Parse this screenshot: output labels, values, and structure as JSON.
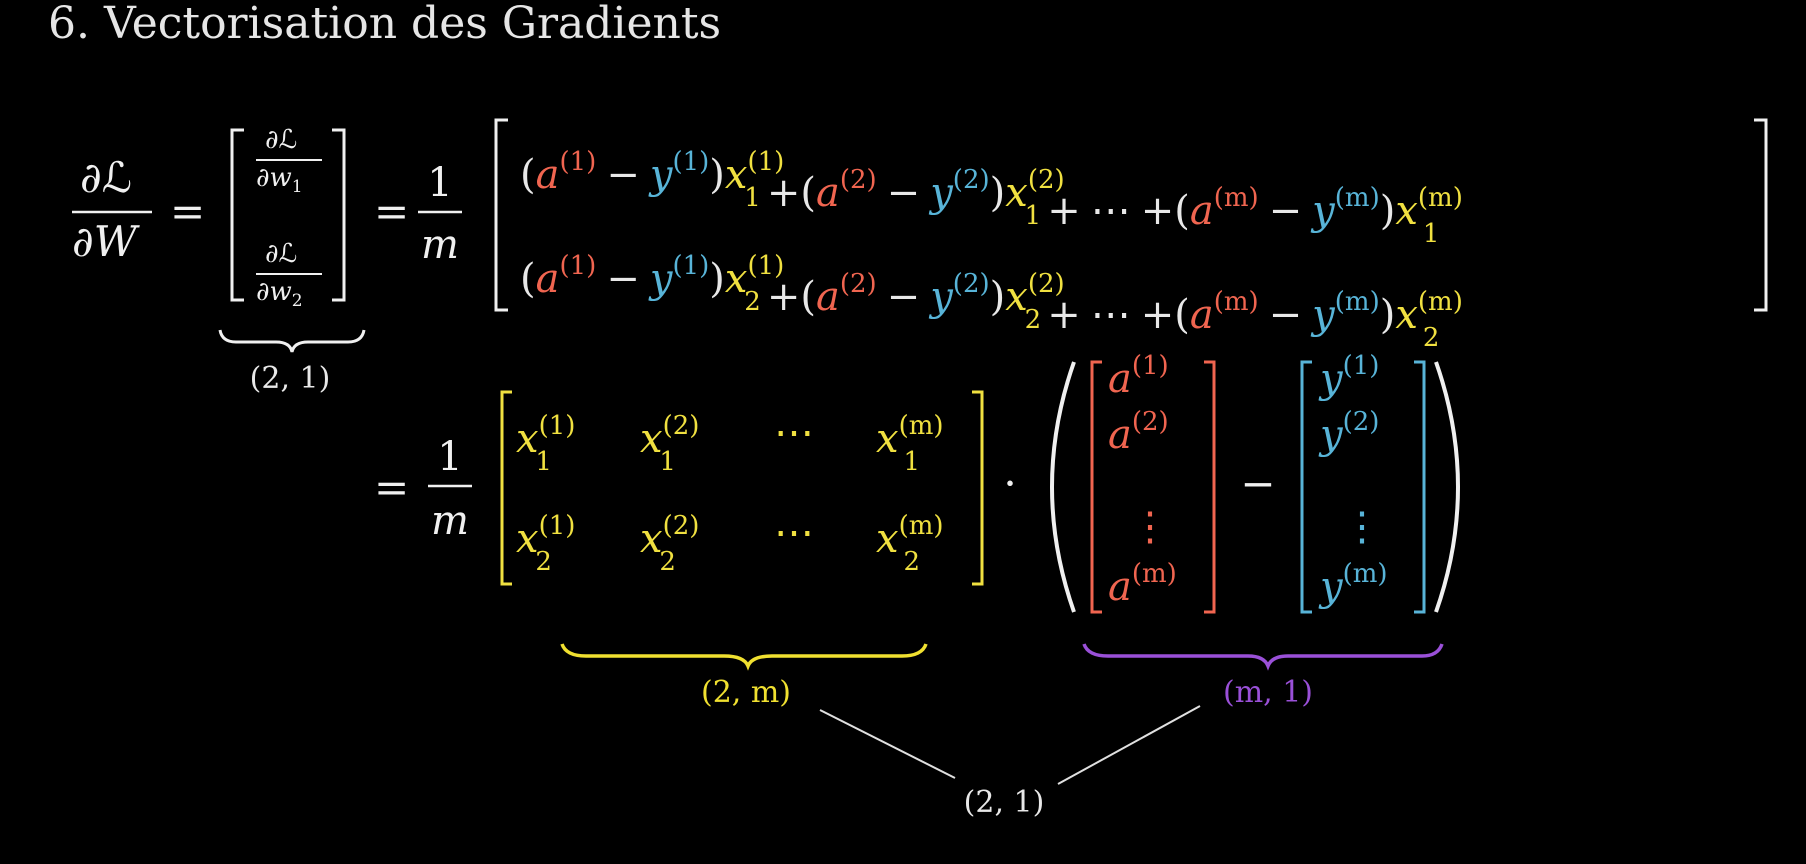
{
  "title": "6. Vectorisation des Gradients",
  "colors": {
    "background": "#000000",
    "text": "#e8e8e8",
    "activation": "#f06550",
    "label": "#58b4d8",
    "input": "#f0e040",
    "brace_x": "#f0e030",
    "brace_vec": "#9a50d8"
  },
  "symbols": {
    "partial": "∂",
    "loss": "ℒ",
    "weight": "W",
    "w": "w",
    "sub1": "1",
    "sub2": "2",
    "eq": "=",
    "one": "1",
    "m": "m",
    "a": "a",
    "y": "y",
    "x": "x",
    "minus": "−",
    "plus": "+",
    "cdots": "⋯",
    "vdots": "⋮",
    "dot": "·",
    "lp": "(",
    "rp": ")",
    "sup_1": "(1)",
    "sup_2": "(2)",
    "sup_m": "(m)"
  },
  "dims": {
    "gradient": "(2, 1)",
    "x_matrix": "(2, m)",
    "diff_vector": "(m, 1)",
    "result": "(2, 1)"
  }
}
